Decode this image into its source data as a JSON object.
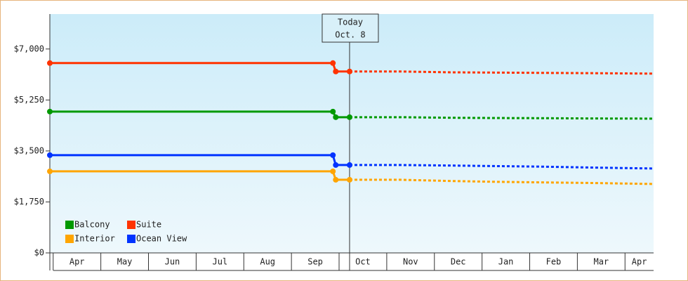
{
  "chart_data": {
    "type": "line",
    "categories": [
      "Apr",
      "May",
      "Jun",
      "Jul",
      "Aug",
      "Sep",
      "Oct",
      "Nov",
      "Dec",
      "Jan",
      "Feb",
      "Mar",
      "Apr"
    ],
    "xlim": [
      -0.07,
      12.6
    ],
    "ylim": [
      0,
      8200
    ],
    "yticks": [
      {
        "value": 0,
        "label": "$0"
      },
      {
        "value": 1750,
        "label": "$1,750"
      },
      {
        "value": 3500,
        "label": "$3,500"
      },
      {
        "value": 5250,
        "label": "$5,250"
      },
      {
        "value": 7000,
        "label": "$7,000"
      }
    ],
    "annotation": {
      "lines": [
        "Today",
        "Oct. 8"
      ],
      "x": 6.22
    },
    "legend": "bottom-left",
    "series": [
      {
        "name": "Balcony",
        "color": "#009900",
        "x": [
          -0.07,
          5.87,
          5.93,
          6.22
        ],
        "values": [
          4852,
          4852,
          4659,
          4659
        ],
        "forecast_x": [
          6.22,
          7.3,
          8.3,
          9.3,
          10.3,
          11.3,
          12.6
        ],
        "forecast": [
          4659,
          4659,
          4640,
          4630,
          4625,
          4615,
          4610
        ]
      },
      {
        "name": "Suite",
        "color": "#ff3300",
        "x": [
          -0.07,
          5.87,
          5.93,
          6.22
        ],
        "values": [
          6517,
          6517,
          6228,
          6228
        ],
        "forecast_x": [
          6.22,
          7.3,
          8.3,
          9.3,
          10.3,
          11.3,
          12.6
        ],
        "forecast": [
          6228,
          6228,
          6200,
          6190,
          6180,
          6170,
          6155
        ]
      },
      {
        "name": "Interior",
        "color": "#ffa500",
        "x": [
          -0.07,
          5.87,
          5.93,
          6.22
        ],
        "values": [
          2800,
          2800,
          2510,
          2510
        ],
        "forecast_x": [
          6.22,
          7.3,
          8.3,
          9.3,
          10.3,
          11.3,
          12.6
        ],
        "forecast": [
          2510,
          2510,
          2470,
          2440,
          2420,
          2400,
          2366
        ]
      },
      {
        "name": "Ocean View",
        "color": "#0033ff",
        "x": [
          -0.07,
          5.87,
          5.93,
          6.22
        ],
        "values": [
          3355,
          3355,
          3017,
          3017
        ],
        "forecast_x": [
          6.22,
          7.3,
          8.3,
          9.3,
          10.3,
          11.3,
          12.6
        ],
        "forecast": [
          3017,
          3017,
          3000,
          2980,
          2960,
          2930,
          2897
        ]
      }
    ]
  }
}
